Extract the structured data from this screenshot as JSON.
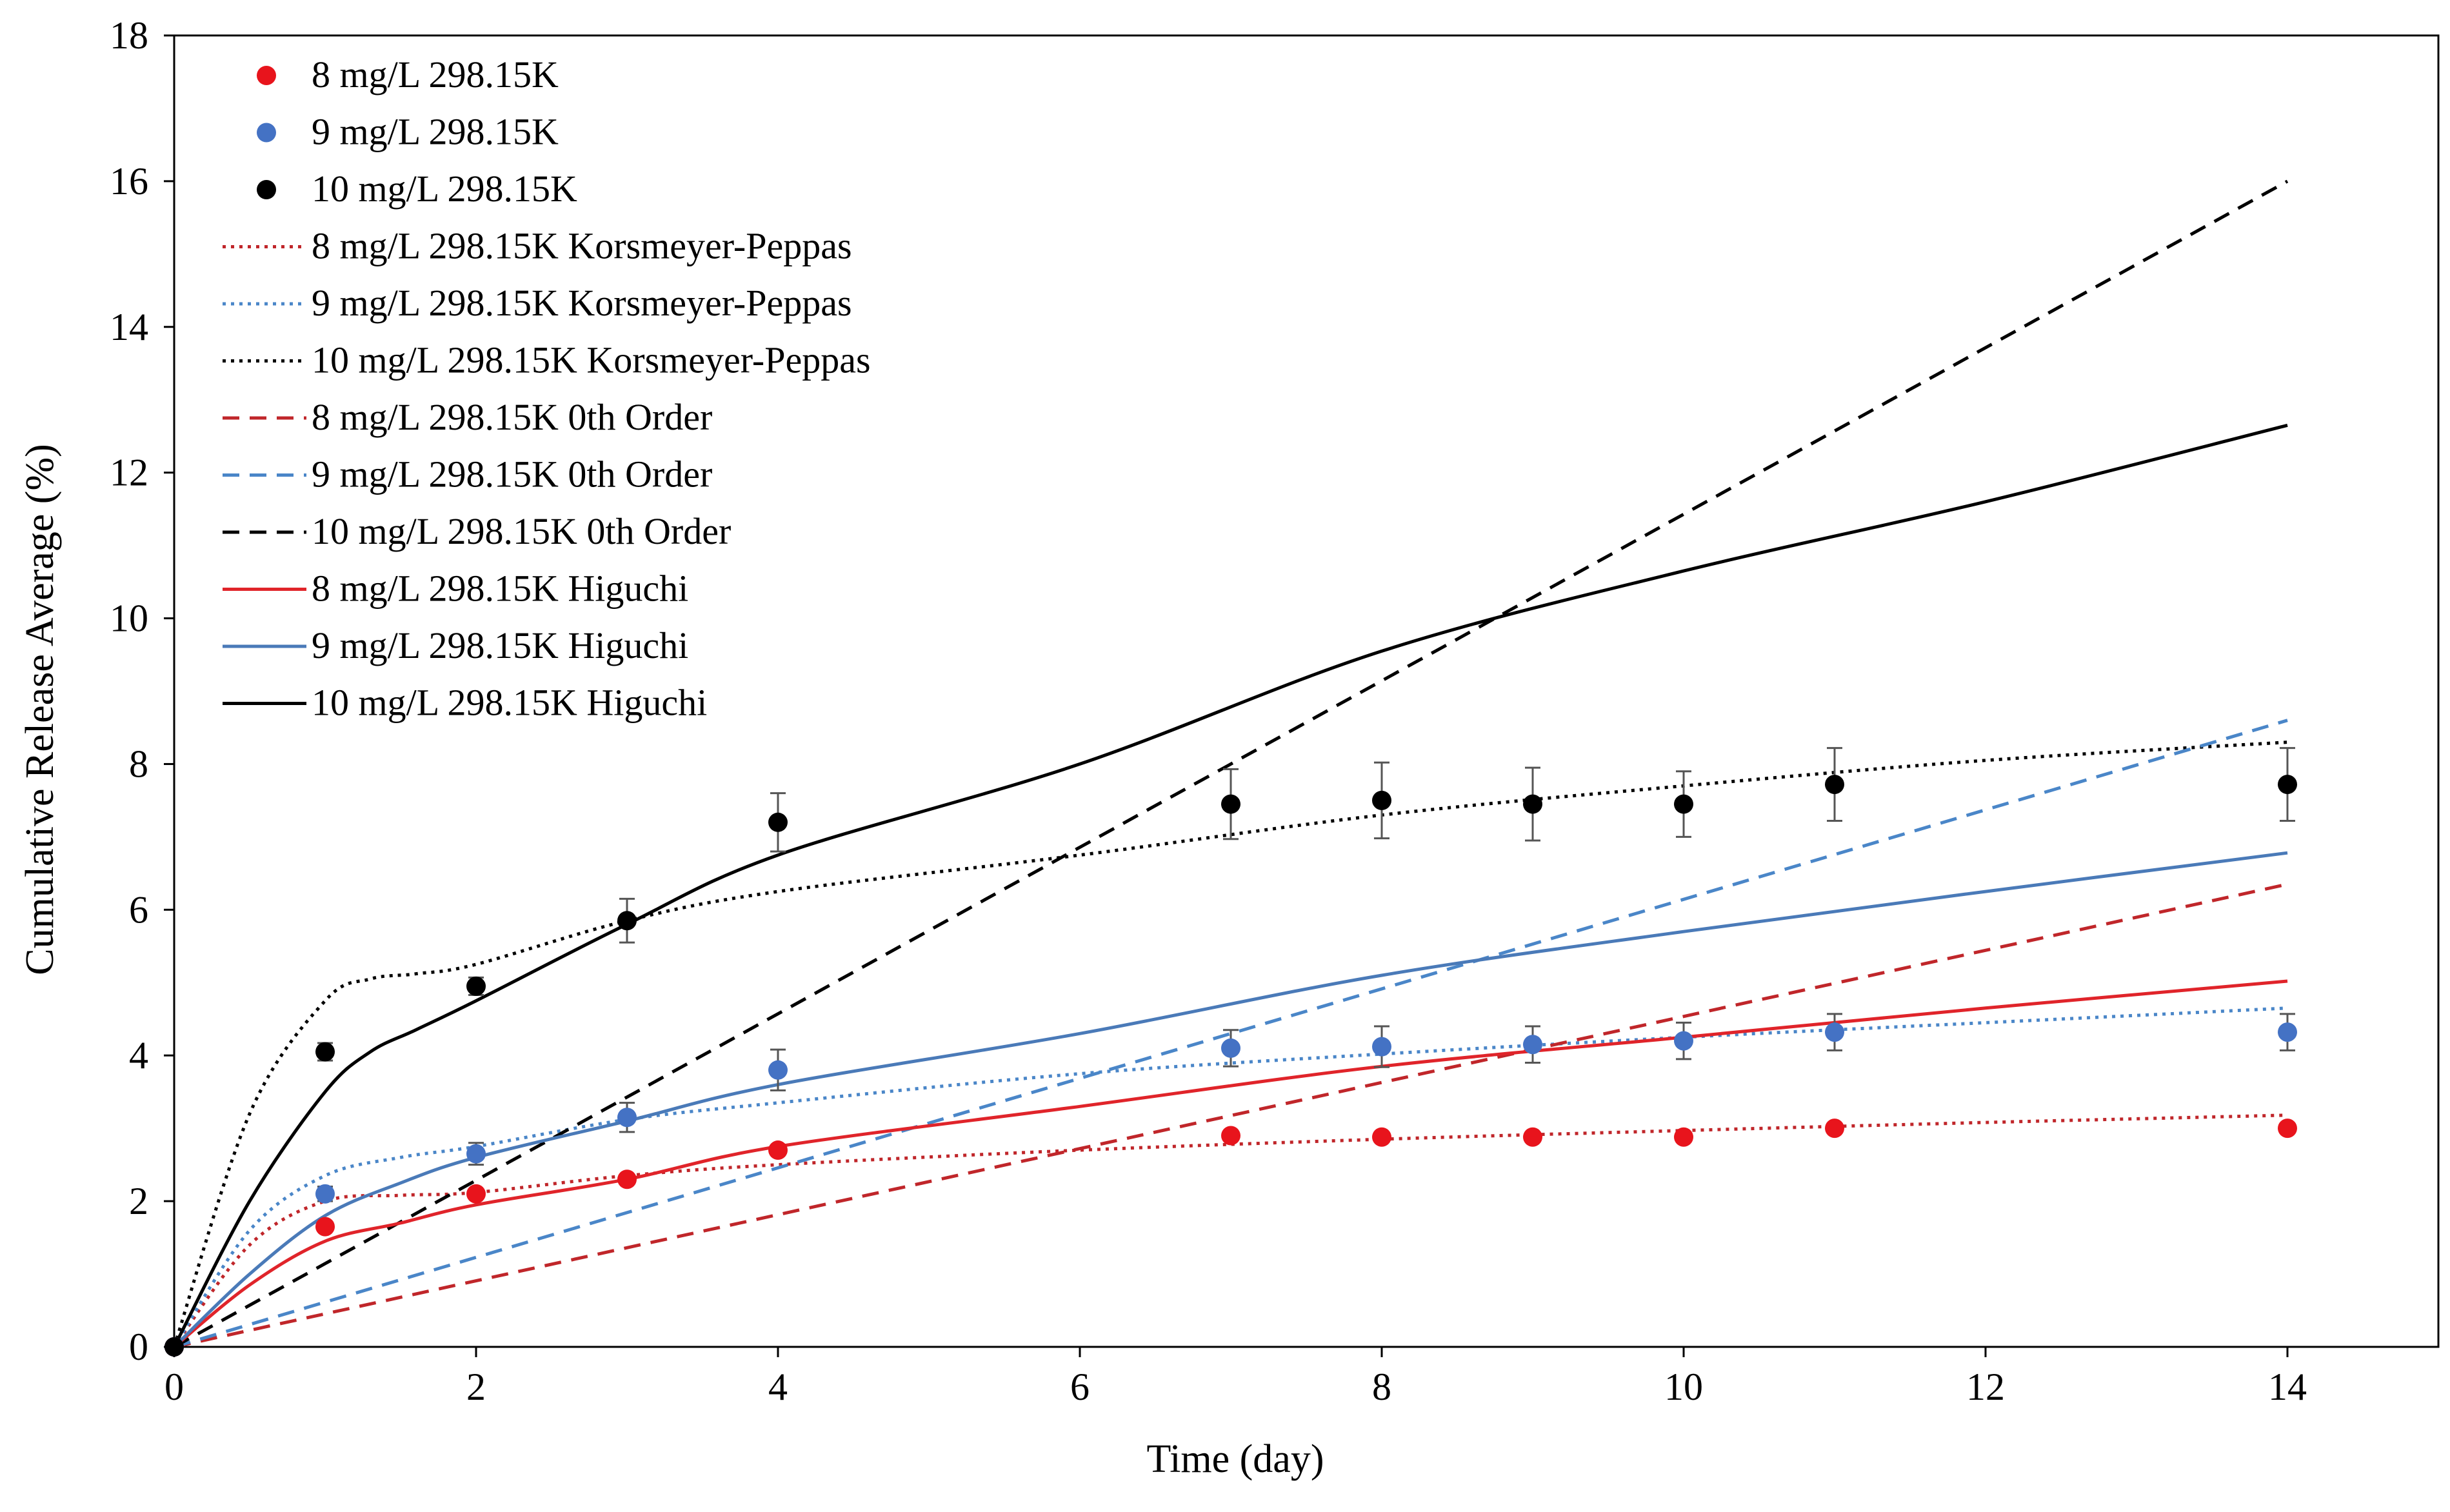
{
  "chart_data": {
    "type": "scatter",
    "xlabel": "Time (day)",
    "ylabel": "Cumulative Release Average (%)",
    "xlim": [
      0,
      15
    ],
    "ylim": [
      0,
      18
    ],
    "xticks": [
      0,
      2,
      4,
      6,
      8,
      10,
      12,
      14
    ],
    "yticks": [
      0,
      2,
      4,
      6,
      8,
      10,
      12,
      14,
      16,
      18
    ],
    "grid": false,
    "legend_position": "top-left",
    "series": [
      {
        "name": "8 mg/L 298.15K",
        "kind": "points",
        "color": "#e8141c",
        "x": [
          0,
          1,
          2,
          3,
          4,
          7,
          8,
          9,
          10,
          11,
          14
        ],
        "y": [
          0,
          1.65,
          2.1,
          2.3,
          2.7,
          2.9,
          2.88,
          2.88,
          2.88,
          3.0,
          3.0
        ]
      },
      {
        "name": "9 mg/L 298.15K",
        "kind": "points",
        "color": "#4472c4",
        "x": [
          0,
          1,
          2,
          3,
          4,
          7,
          8,
          9,
          10,
          11,
          14
        ],
        "y": [
          0,
          2.1,
          2.65,
          3.15,
          3.8,
          4.1,
          4.12,
          4.15,
          4.2,
          4.32,
          4.32
        ],
        "err": [
          0,
          0.1,
          0.15,
          0.2,
          0.28,
          0.25,
          0.28,
          0.25,
          0.25,
          0.25,
          0.25
        ]
      },
      {
        "name": "10 mg/L 298.15K",
        "kind": "points",
        "color": "#000000",
        "x": [
          0,
          1,
          2,
          3,
          4,
          7,
          8,
          9,
          10,
          11,
          14
        ],
        "y": [
          0,
          4.05,
          4.95,
          5.85,
          7.2,
          7.45,
          7.5,
          7.45,
          7.45,
          7.72,
          7.72
        ],
        "err": [
          0,
          0.12,
          0.12,
          0.3,
          0.4,
          0.48,
          0.52,
          0.5,
          0.45,
          0.5,
          0.5
        ]
      },
      {
        "name": "8 mg/L 298.15K Korsmeyer-Peppas",
        "kind": "line",
        "dash": "dotted",
        "color": "#c0262a",
        "x": [
          0,
          0.5,
          1,
          1.5,
          2,
          3,
          4,
          6,
          8,
          10,
          12,
          14
        ],
        "y": [
          0,
          1.4,
          2.0,
          2.08,
          2.12,
          2.35,
          2.5,
          2.7,
          2.85,
          2.97,
          3.08,
          3.18
        ]
      },
      {
        "name": "9 mg/L 298.15K Korsmeyer-Peppas",
        "kind": "line",
        "dash": "dotted",
        "color": "#4a86c8",
        "x": [
          0,
          0.5,
          1,
          1.5,
          2,
          3,
          4,
          6,
          8,
          10,
          12,
          14
        ],
        "y": [
          0,
          1.6,
          2.35,
          2.6,
          2.75,
          3.12,
          3.35,
          3.75,
          4.02,
          4.25,
          4.45,
          4.65
        ]
      },
      {
        "name": "10 mg/L 298.15K Korsmeyer-Peppas",
        "kind": "line",
        "dash": "dotted",
        "color": "#000000",
        "x": [
          0,
          0.5,
          1,
          1.3,
          1.6,
          2,
          3,
          4,
          6,
          8,
          10,
          12,
          14
        ],
        "y": [
          0,
          3.2,
          4.75,
          5.05,
          5.12,
          5.25,
          5.85,
          6.25,
          6.75,
          7.3,
          7.7,
          8.05,
          8.3
        ]
      },
      {
        "name": "8 mg/L 298.15K  0th Order",
        "kind": "line",
        "dash": "dashed",
        "color": "#c0262a",
        "x": [
          0,
          14
        ],
        "y": [
          0,
          6.35
        ]
      },
      {
        "name": "9 mg/L 298.15K 0th Order",
        "kind": "line",
        "dash": "dashed",
        "color": "#4a86c8",
        "x": [
          0,
          14
        ],
        "y": [
          0,
          8.6
        ]
      },
      {
        "name": "10 mg/L 298.15K 0th Order",
        "kind": "line",
        "dash": "dashed",
        "color": "#000000",
        "x": [
          0,
          14
        ],
        "y": [
          0,
          16.0
        ]
      },
      {
        "name": "8 mg/L 298.15K Higuchi",
        "kind": "line",
        "dash": "solid",
        "color": "#e0242a",
        "x": [
          0,
          0.5,
          1,
          1.5,
          2,
          3,
          4,
          6,
          8,
          10,
          12,
          14
        ],
        "y": [
          0,
          0.85,
          1.45,
          1.7,
          1.95,
          2.3,
          2.75,
          3.3,
          3.85,
          4.25,
          4.65,
          5.02
        ]
      },
      {
        "name": "9 mg/L 298.15K Higuchi",
        "kind": "line",
        "dash": "solid",
        "color": "#4a7ab8",
        "x": [
          0,
          0.5,
          1,
          1.5,
          2,
          3,
          4,
          6,
          8,
          10,
          12,
          14
        ],
        "y": [
          0,
          1.0,
          1.8,
          2.25,
          2.6,
          3.1,
          3.6,
          4.3,
          5.1,
          5.7,
          6.25,
          6.78
        ]
      },
      {
        "name": "10 mg/L 298.15K Higuchi",
        "kind": "line",
        "dash": "solid",
        "color": "#000000",
        "x": [
          0,
          0.5,
          1,
          1.3,
          1.6,
          2,
          3,
          4,
          6,
          8,
          10,
          12,
          14
        ],
        "y": [
          0,
          2.0,
          3.5,
          4.05,
          4.35,
          4.75,
          5.8,
          6.75,
          8.0,
          9.55,
          10.65,
          11.6,
          12.65
        ]
      }
    ]
  }
}
